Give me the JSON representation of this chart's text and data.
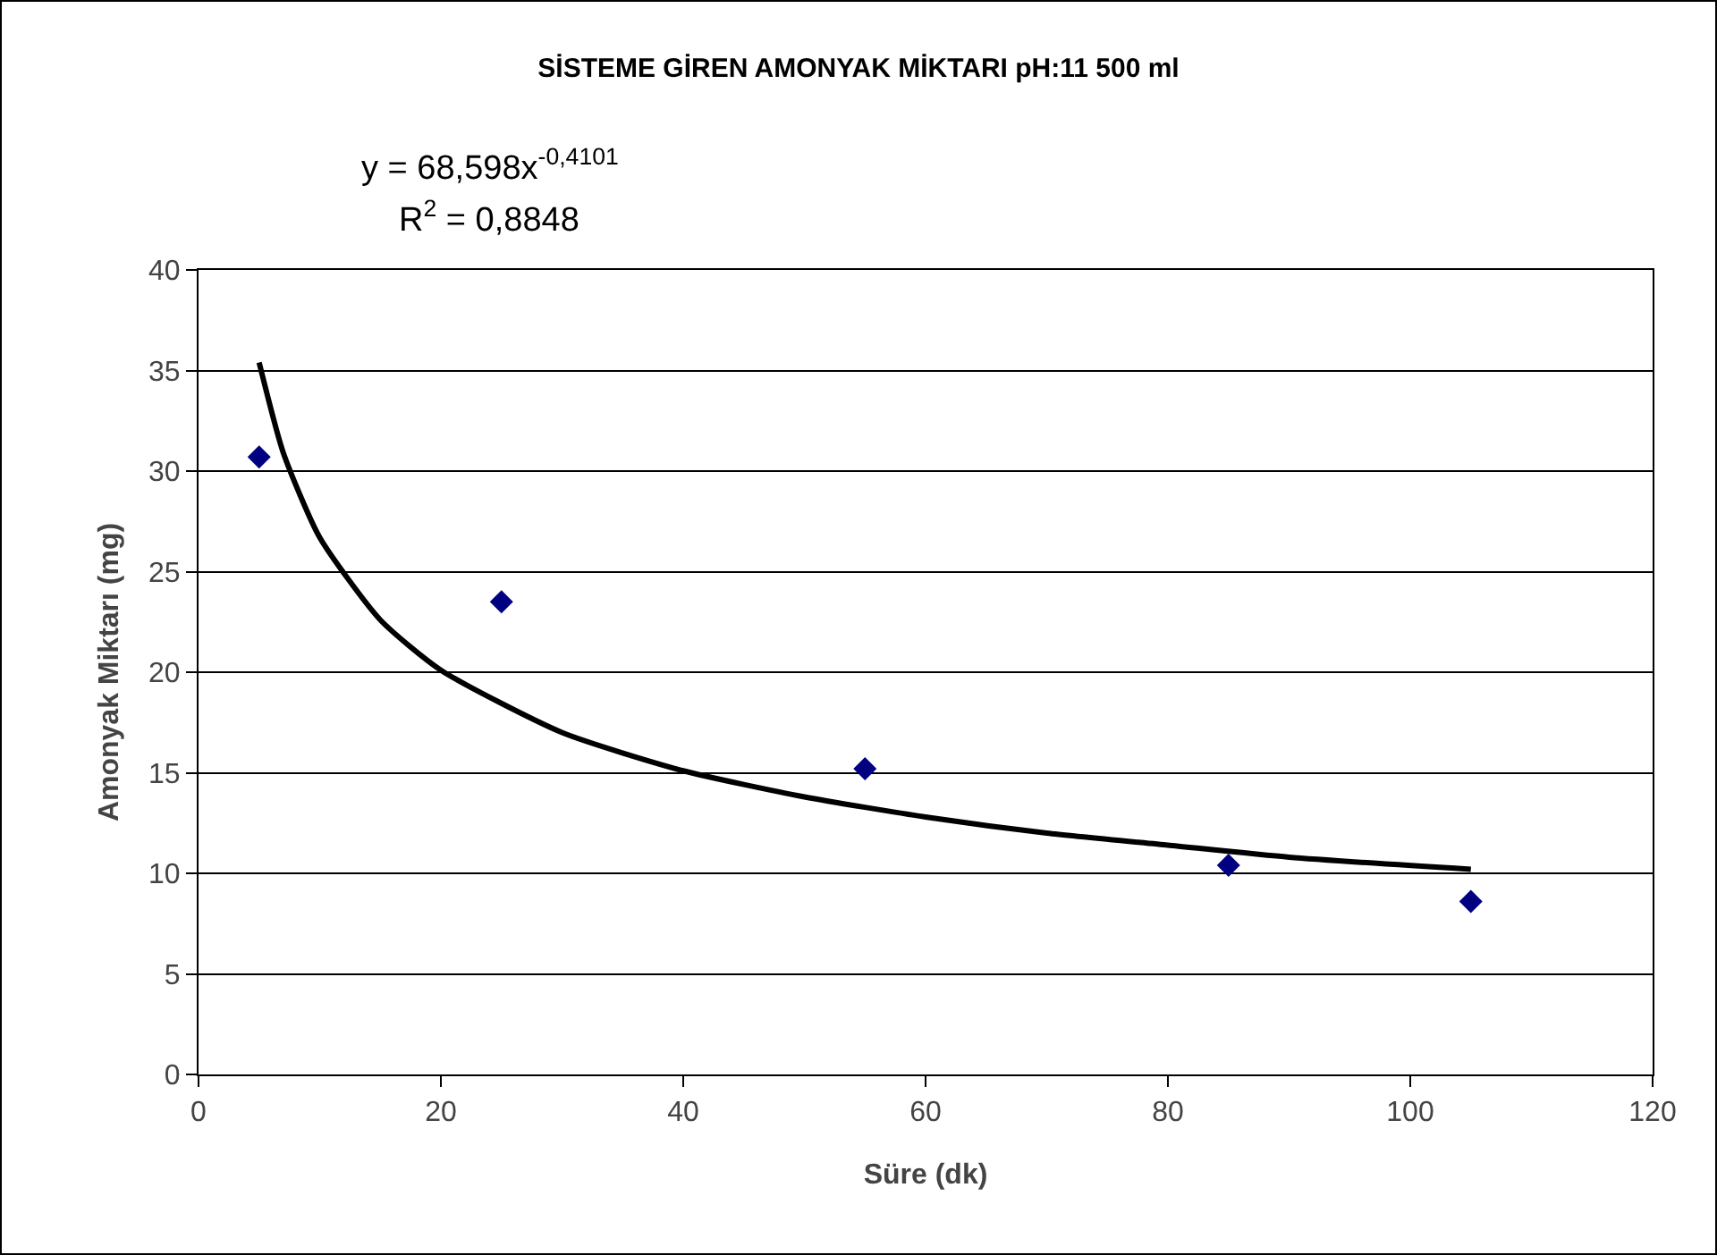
{
  "chart_data": {
    "type": "scatter",
    "title": "SİSTEME GİREN AMONYAK MİKTARI pH:11 500 ml",
    "xlabel": "Süre (dk)",
    "ylabel": "Amonyak Miktarı (mg)",
    "x": [
      5,
      25,
      55,
      85,
      105
    ],
    "series": [
      {
        "color": "#000080",
        "values": [
          30.7,
          23.5,
          15.2,
          10.4,
          8.6
        ],
        "marker": "diamond"
      },
      {
        "type": "line",
        "color": "#000000",
        "marker": "none",
        "line_style": "solid",
        "x": [
          5,
          7,
          10,
          15,
          20,
          30,
          40,
          50,
          60,
          70,
          80,
          90,
          105
        ],
        "values": [
          35.4,
          30.9,
          26.7,
          22.6,
          20.1,
          17.0,
          15.1,
          13.8,
          12.8,
          12.0,
          11.4,
          10.8,
          10.2
        ]
      }
    ],
    "annotations": [
      "y = 68,598x$^{-0,4101}$",
      "R$^{2}$ = 0,8848"
    ],
    "xlim": [
      0,
      120
    ],
    "xticks": [
      0,
      20,
      40,
      60,
      80,
      100,
      120
    ],
    "ylim": [
      0,
      40
    ],
    "yticks": [
      0,
      5,
      10,
      15,
      20,
      25,
      30,
      35,
      40
    ],
    "grid": "y"
  }
}
